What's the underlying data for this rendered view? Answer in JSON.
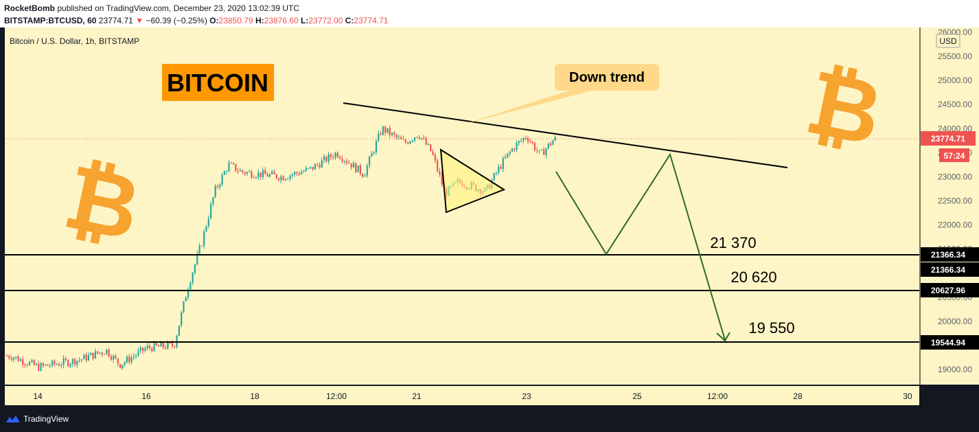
{
  "header": {
    "author": "RocketBomb",
    "published_text": "published on TradingView.com, December 23, 2020 13:02:39 UTC",
    "symbol": "BITSTAMP:BTCUSD, 60",
    "last": "23774.71",
    "change_arrow": "▼",
    "change": "−60.39 (−0.25%)",
    "o_label": "O:",
    "o": "23850.79",
    "h_label": "H:",
    "h": "23876.60",
    "l_label": "L:",
    "l": "23772.00",
    "c_label": "C:",
    "c": "23774.71"
  },
  "chart_title": "Bitcoin / U.S. Dollar, 1h, BITSTAMP",
  "currency": "USD",
  "annotations": {
    "bitcoin_label": "BITCOIN",
    "down_trend": "Down trend",
    "targets": [
      "21 370",
      "20 620",
      "19 550"
    ],
    "btc_symbol": "₿"
  },
  "price_axis": {
    "ticks": [
      "26000.00",
      "25500.00",
      "25000.00",
      "24500.00",
      "24000.00",
      "23500.00",
      "23000.00",
      "22500.00",
      "22000.00",
      "21500.00",
      "21000.00",
      "20500.00",
      "20000.00",
      "19500.00",
      "19000.00"
    ],
    "last_price": "23774.71",
    "countdown": "57:24",
    "level_labels": [
      "21366.34",
      "21366.34",
      "20627.96",
      "19544.94"
    ]
  },
  "time_axis": {
    "labels": [
      "14",
      "16",
      "18",
      "12:00",
      "21",
      "23",
      "25",
      "12:00",
      "28",
      "30"
    ]
  },
  "colors": {
    "chart_bg": "#fdf5c6",
    "up": "#26a69a",
    "down": "#ef5350",
    "accent_orange": "#ff9800",
    "path_green": "#2e6b1f",
    "callout": "#ffd88a"
  },
  "footer": {
    "brand": "TradingView"
  },
  "chart_data": {
    "type": "candlestick",
    "title": "Bitcoin / U.S. Dollar, 1h, BITSTAMP",
    "ylim": [
      18800,
      26050
    ],
    "anchors": [
      {
        "x": "Dec 13 12:00",
        "y": 19280
      },
      {
        "x": "Dec 14 00:00",
        "y": 19050
      },
      {
        "x": "Dec 14 18:00",
        "y": 19200
      },
      {
        "x": "Dec 15 06:00",
        "y": 19400
      },
      {
        "x": "Dec 15 12:00",
        "y": 19100
      },
      {
        "x": "Dec 16 00:00",
        "y": 19450
      },
      {
        "x": "Dec 16 12:00",
        "y": 19500
      },
      {
        "x": "Dec 16 18:00",
        "y": 20700
      },
      {
        "x": "Dec 17 00:00",
        "y": 21600
      },
      {
        "x": "Dec 17 06:00",
        "y": 22700
      },
      {
        "x": "Dec 17 12:00",
        "y": 23250
      },
      {
        "x": "Dec 17 18:00",
        "y": 23100
      },
      {
        "x": "Dec 18 12:00",
        "y": 23000
      },
      {
        "x": "Dec 19 00:00",
        "y": 23150
      },
      {
        "x": "Dec 19 12:00",
        "y": 23500
      },
      {
        "x": "Dec 20 00:00",
        "y": 23050
      },
      {
        "x": "Dec 20 08:00",
        "y": 24000
      },
      {
        "x": "Dec 20 18:00",
        "y": 23700
      },
      {
        "x": "Dec 21 00:00",
        "y": 23900
      },
      {
        "x": "Dec 21 06:00",
        "y": 23500
      },
      {
        "x": "Dec 21 12:00",
        "y": 22650
      },
      {
        "x": "Dec 21 18:00",
        "y": 22900
      },
      {
        "x": "Dec 22 06:00",
        "y": 22700
      },
      {
        "x": "Dec 22 12:00",
        "y": 23200
      },
      {
        "x": "Dec 22 18:00",
        "y": 23600
      },
      {
        "x": "Dec 23 00:00",
        "y": 23850
      },
      {
        "x": "Dec 23 06:00",
        "y": 23450
      },
      {
        "x": "Dec 23 12:00",
        "y": 23774.71
      }
    ],
    "levels": [
      21366.34,
      20627.96,
      19544.94
    ],
    "trendline": [
      {
        "x": "Dec 20 06:00",
        "y": 24500
      },
      {
        "x": "Dec 27 18:00",
        "y": 23150
      }
    ],
    "triangle": [
      {
        "x": "Dec 21 06:00",
        "y": 23500
      },
      {
        "x": "Dec 22 12:00",
        "y": 22700
      },
      {
        "x": "Dec 21 12:00",
        "y": 22270
      }
    ],
    "projection": [
      {
        "x": "Dec 23 12:00",
        "y": 23100
      },
      {
        "x": "Dec 24 12:00",
        "y": 21400
      },
      {
        "x": "Dec 25 18:00",
        "y": 23450
      },
      {
        "x": "Dec 26 18:00",
        "y": 19550
      }
    ]
  }
}
